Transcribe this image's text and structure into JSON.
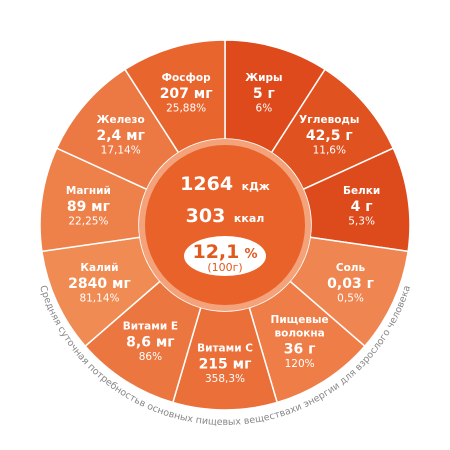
{
  "chart_data": {
    "type": "pie",
    "center": {
      "energy_kj": "1264",
      "energy_kj_unit": "кДж",
      "energy_kcal": "303",
      "energy_kcal_unit": "ккал",
      "percent": "12,1",
      "percent_symbol": "%",
      "percent_note": "(100г)"
    },
    "arc_label": "Средняя суточная потребностьв основных пищевых веществахи энергии для взрослого человека",
    "colors": {
      "background": "#ffffff",
      "outer_ring": "#f08a4b",
      "center": "#e8622a",
      "center_ring": "#f4a27a",
      "pill": "#ffffff",
      "pill_text": "#e05a20"
    },
    "segments": [
      {
        "name": "Жиры",
        "value": "5 г",
        "percent": "6%",
        "percent_value": 6,
        "color": "#de4a1b"
      },
      {
        "name": "Углеводы",
        "value": "42,5 г",
        "percent": "11,6%",
        "percent_value": 11.6,
        "color": "#e0521f"
      },
      {
        "name": "Белки",
        "value": "4 г",
        "percent": "5,3%",
        "percent_value": 5.3,
        "color": "#dd4b1d"
      },
      {
        "name": "Соль",
        "value": "0,03 г",
        "percent": "0,5%",
        "percent_value": 0.5,
        "color": "#ef8550"
      },
      {
        "name": "Пищевые волокна",
        "value": "36 г",
        "percent": "120%",
        "percent_value": 120,
        "color": "#ee7d47"
      },
      {
        "name": "Витами С",
        "value": "215 мг",
        "percent": "358,3%",
        "percent_value": 358.3,
        "color": "#ea6f38"
      },
      {
        "name": "Витами Е",
        "value": "8,6 мг",
        "percent": "86%",
        "percent_value": 86,
        "color": "#ec7640"
      },
      {
        "name": "Калий",
        "value": "2840 мг",
        "percent": "81,14%",
        "percent_value": 81.14,
        "color": "#f08b53"
      },
      {
        "name": "Магний",
        "value": "89 мг",
        "percent": "22,25%",
        "percent_value": 22.25,
        "color": "#ee8149"
      },
      {
        "name": "Железо",
        "value": "2,4 мг",
        "percent": "17,14%",
        "percent_value": 17.14,
        "color": "#ec7843"
      },
      {
        "name": "Фосфор",
        "value": "207 мг",
        "percent": "25,88%",
        "percent_value": 25.88,
        "color": "#e8652e"
      }
    ]
  }
}
